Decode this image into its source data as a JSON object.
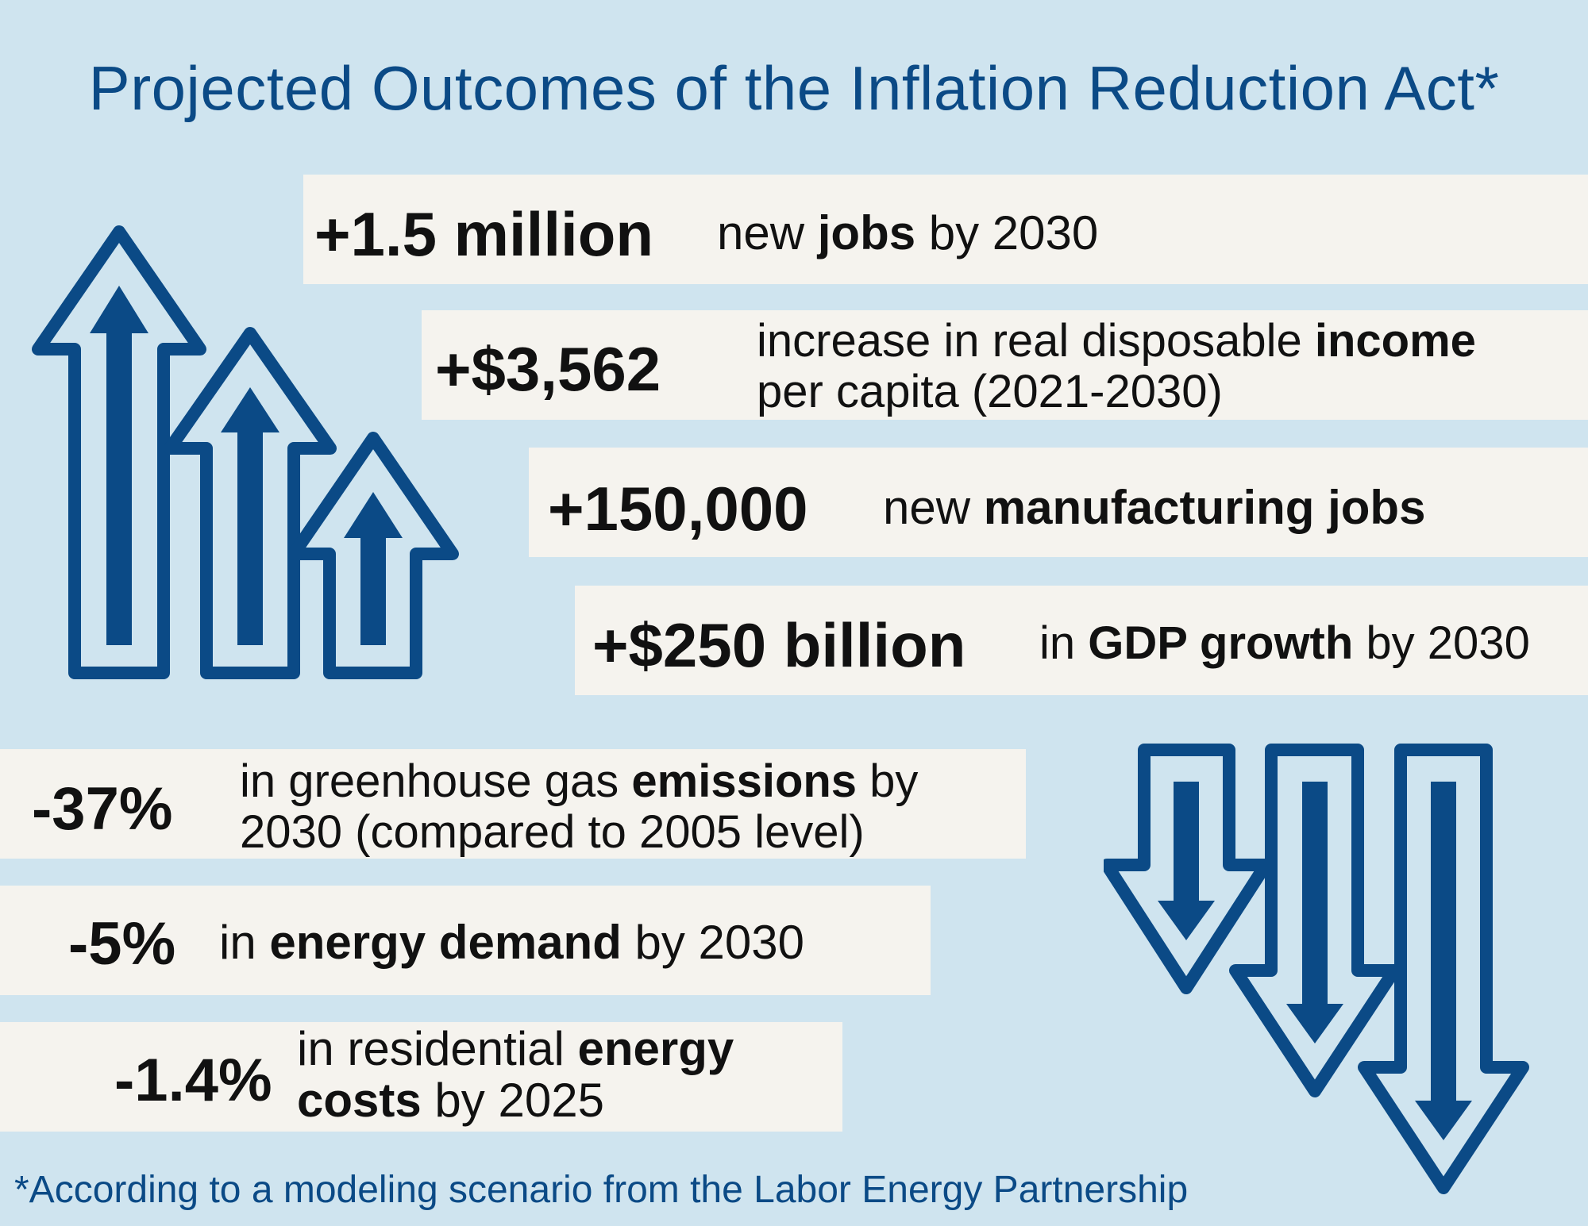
{
  "title": "Projected Outcomes of the Inflation Reduction Act*",
  "colors": {
    "background": "#cfe4ef",
    "box": "#f5f3ee",
    "accent_blue": "#0b4a86",
    "arrow_blue": "#0b4a86"
  },
  "icons": {
    "up": "up-arrows-icon",
    "down": "down-arrows-icon"
  },
  "stats": {
    "jobs": {
      "value": "+1.5 million",
      "t1": "new ",
      "b1": "jobs",
      "t2": " by 2030"
    },
    "income": {
      "value": "+$3,562",
      "l1a": "increase in real disposable ",
      "l1b": "income",
      "l2": "per capita (2021-2030)"
    },
    "mfg": {
      "value": "+150,000",
      "t1": "new ",
      "b1": "manufacturing jobs"
    },
    "gdp": {
      "value": "+$250 billion",
      "t1": "in ",
      "b1": "GDP growth",
      "t2": " by 2030"
    },
    "emissions": {
      "value": "-37%",
      "l1a": "in greenhouse gas ",
      "l1b": "emissions",
      "l1c": " by",
      "l2": "2030 (compared to 2005 level)"
    },
    "demand": {
      "value": "-5%",
      "t1": "in ",
      "b1": "energy demand",
      "t2": " by 2030"
    },
    "costs": {
      "value": "-1.4%",
      "l1a": "in residential ",
      "l1b": "energy",
      "l2a": "costs",
      "l2b": " by 2025"
    }
  },
  "footnote": "*According to a modeling scenario from the Labor Energy Partnership"
}
